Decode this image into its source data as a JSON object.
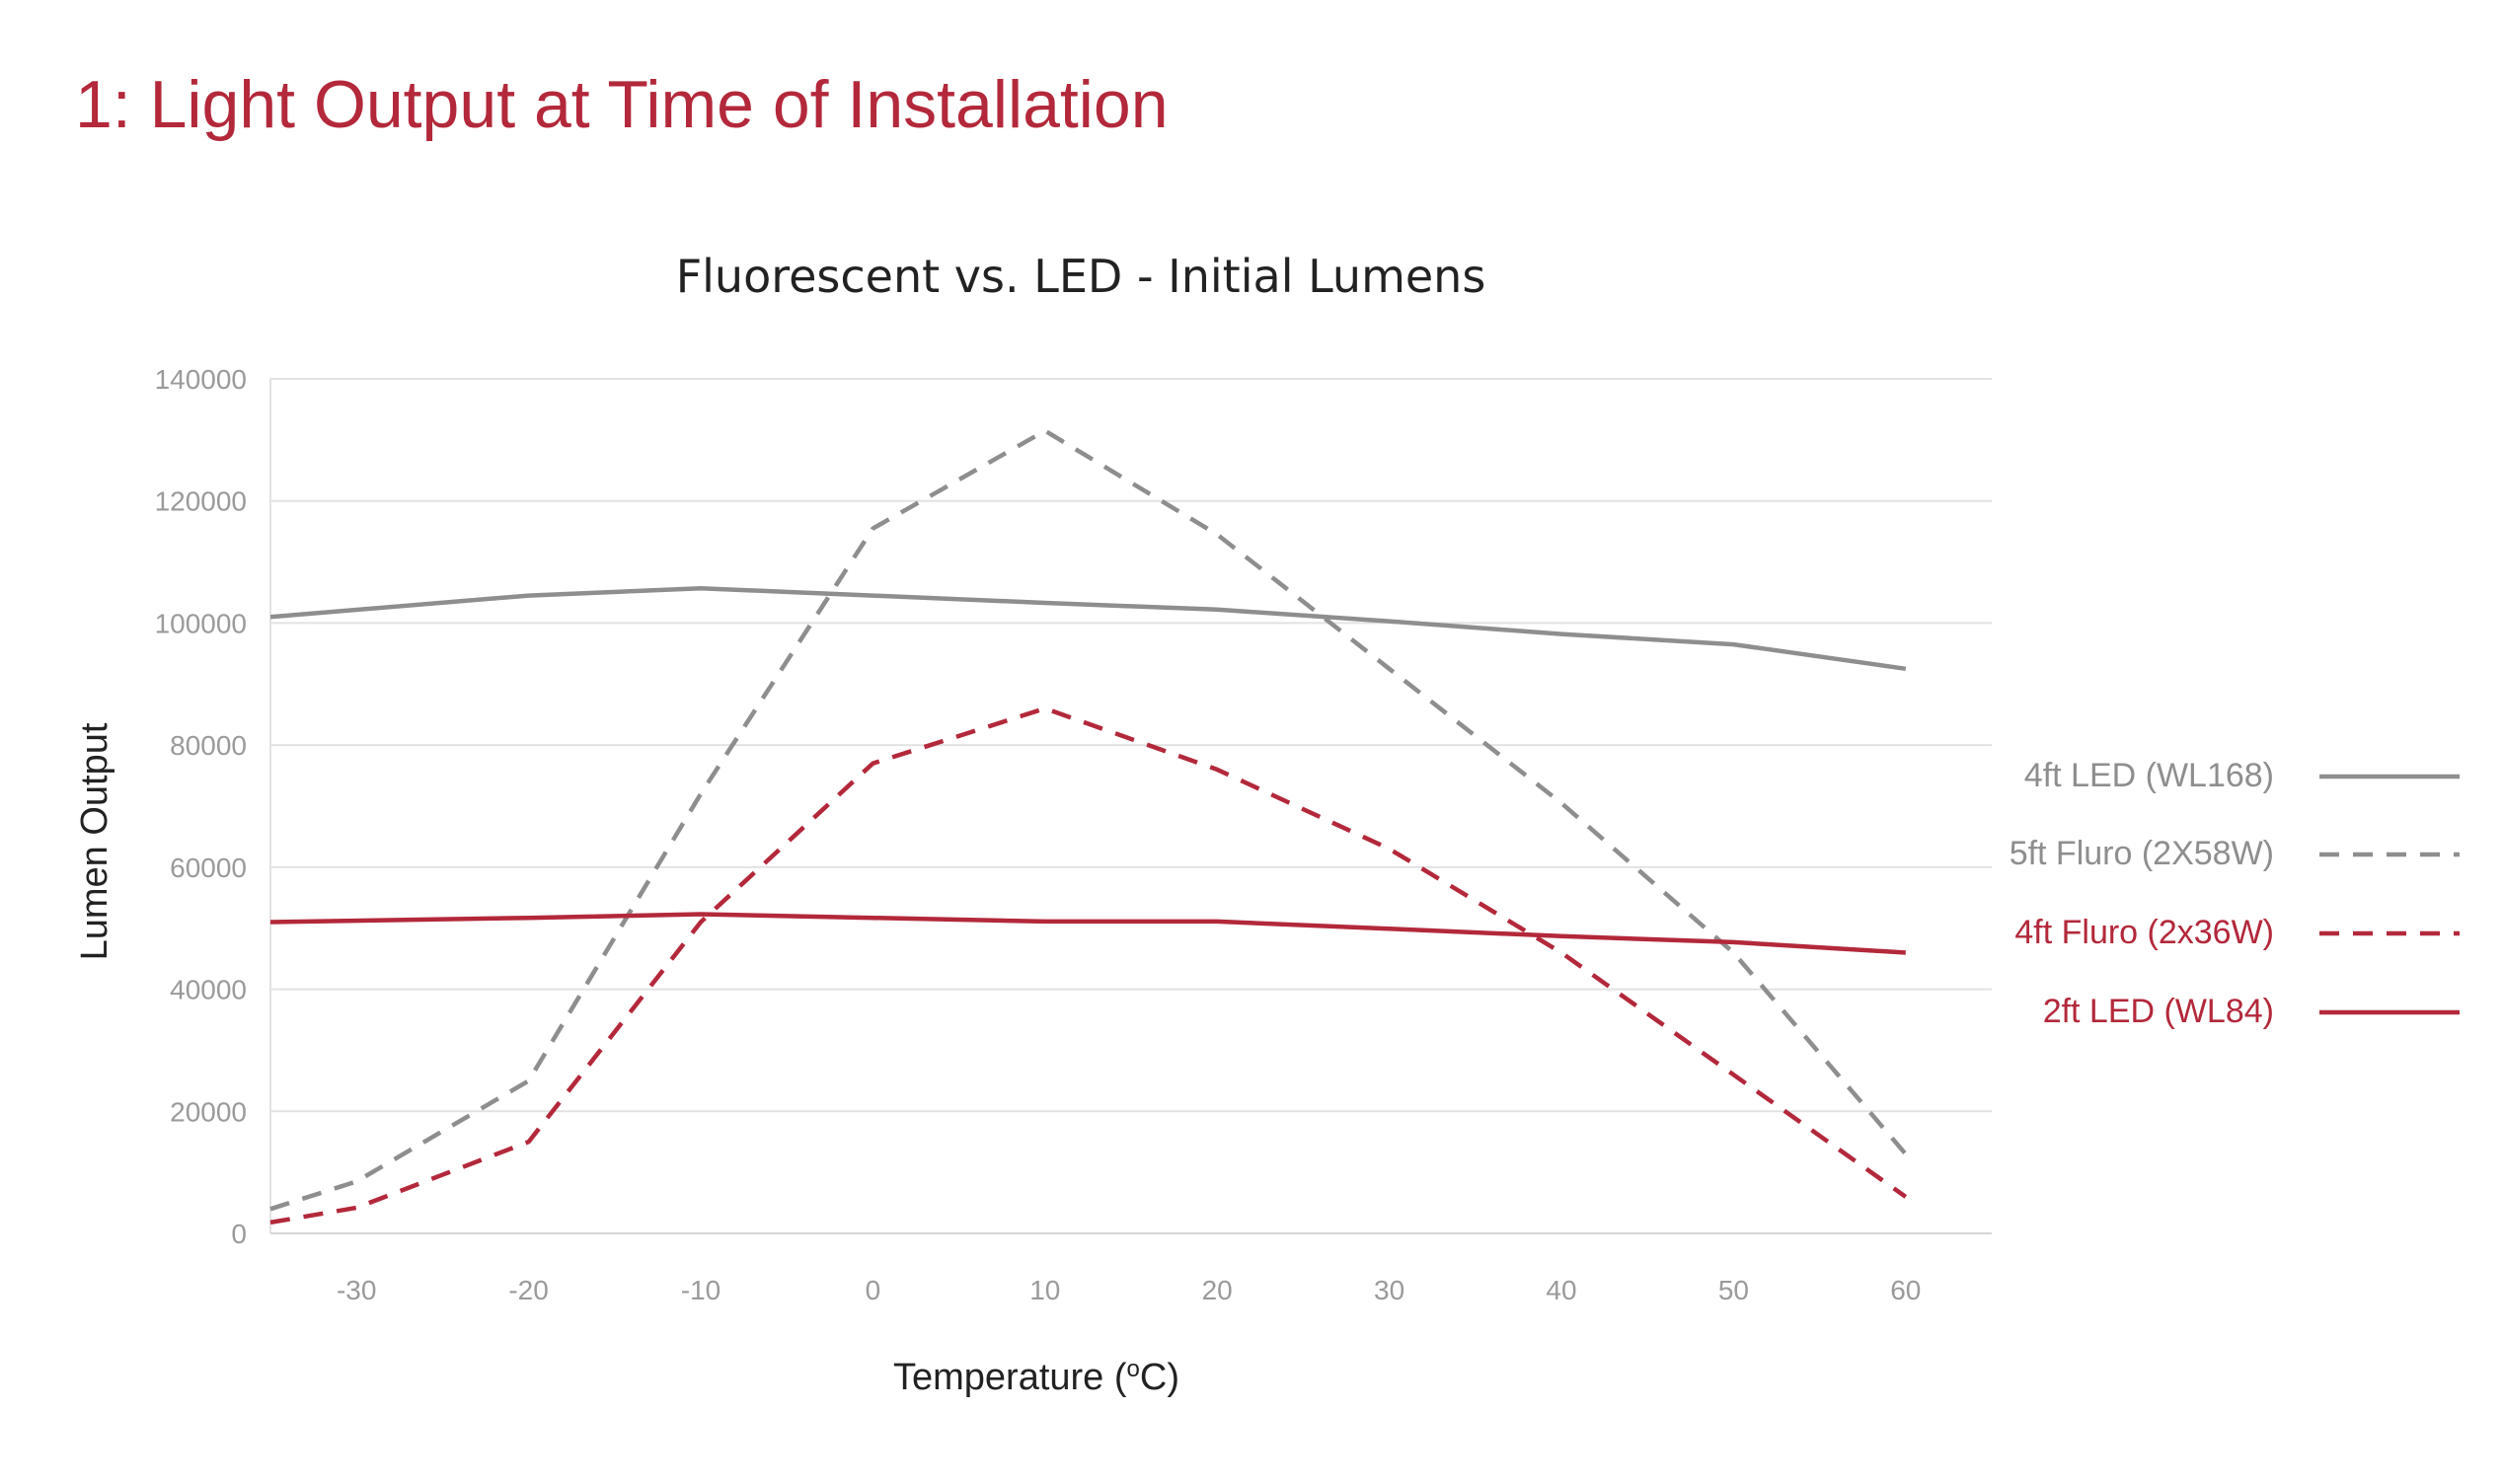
{
  "page": {
    "heading": "1: Light Output at Time of Installation"
  },
  "colors": {
    "heading": "#b3283a",
    "grey_series": "#8e8e8e",
    "red_series": "#b3283a",
    "grid": "#e2e2e2",
    "tick": "#9a9a9a"
  },
  "chart_data": {
    "type": "line",
    "title": "Fluorescent vs. LED - Initial Lumens",
    "xlabel": "Temperature (",
    "xlabel_super": "o",
    "xlabel_end": "C)",
    "ylabel": "Lumen Output",
    "xlim": [
      -35,
      65
    ],
    "ylim": [
      0,
      140000
    ],
    "x_ticks": [
      "-30",
      "-20",
      "-10",
      "0",
      "10",
      "20",
      "30",
      "40",
      "50",
      "60"
    ],
    "y_ticks": [
      "0",
      "20000",
      "40000",
      "60000",
      "80000",
      "100000",
      "120000",
      "140000"
    ],
    "grid": true,
    "legend_position": "right",
    "series": [
      {
        "name": "4ft LED (WL168)",
        "color": "#8e8e8e",
        "style": "solid",
        "points": [
          [
            -35,
            101000
          ],
          [
            -20,
            104500
          ],
          [
            -10,
            105700
          ],
          [
            0,
            104500
          ],
          [
            10,
            103300
          ],
          [
            20,
            102200
          ],
          [
            30,
            100300
          ],
          [
            40,
            98200
          ],
          [
            50,
            96500
          ],
          [
            60,
            92500
          ]
        ]
      },
      {
        "name": "5ft Fluro (2X58W)",
        "color": "#8e8e8e",
        "style": "dashed",
        "points": [
          [
            -35,
            4000
          ],
          [
            -30,
            8500
          ],
          [
            -20,
            25000
          ],
          [
            -10,
            72000
          ],
          [
            0,
            115500
          ],
          [
            10,
            131500
          ],
          [
            20,
            114500
          ],
          [
            30,
            92500
          ],
          [
            40,
            70500
          ],
          [
            50,
            46000
          ],
          [
            60,
            13000
          ]
        ]
      },
      {
        "name": "4ft Fluro (2x36W)",
        "color": "#b3283a",
        "style": "dashed",
        "points": [
          [
            -35,
            1800
          ],
          [
            -30,
            4200
          ],
          [
            -20,
            15000
          ],
          [
            -10,
            51000
          ],
          [
            0,
            77000
          ],
          [
            10,
            86000
          ],
          [
            20,
            76000
          ],
          [
            30,
            63000
          ],
          [
            40,
            46000
          ],
          [
            50,
            26000
          ],
          [
            60,
            6000
          ]
        ]
      },
      {
        "name": "2ft LED (WL84)",
        "color": "#b3283a",
        "style": "solid",
        "points": [
          [
            -35,
            51000
          ],
          [
            -20,
            51700
          ],
          [
            -10,
            52300
          ],
          [
            0,
            51700
          ],
          [
            10,
            51100
          ],
          [
            20,
            51100
          ],
          [
            30,
            49900
          ],
          [
            40,
            48700
          ],
          [
            50,
            47700
          ],
          [
            60,
            46000
          ]
        ]
      }
    ]
  }
}
